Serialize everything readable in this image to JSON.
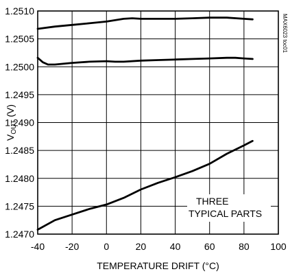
{
  "chart_data": {
    "type": "line",
    "title": "",
    "xlabel": "TEMPERATURE DRIFT (°C)",
    "ylabel_main": "V",
    "ylabel_sub": "OUT",
    "ylabel_unit": " (V)",
    "xlim": [
      -40,
      100
    ],
    "ylim": [
      1.247,
      1.251
    ],
    "x_ticks": [
      -40,
      -20,
      0,
      20,
      40,
      60,
      80,
      100
    ],
    "x_tick_labels": [
      "-40",
      "-20",
      "0",
      "20",
      "40",
      "60",
      "80",
      "100"
    ],
    "y_ticks": [
      1.247,
      1.2475,
      1.248,
      1.2485,
      1.249,
      1.2495,
      1.25,
      1.2505,
      1.251
    ],
    "y_tick_labels": [
      "1.2470",
      "1.2475",
      "1.2480",
      "1.2485",
      "1.2490",
      "1.2495",
      "1.2500",
      "1.2505",
      "1.2510"
    ],
    "grid": true,
    "annotation_lines": [
      "THREE",
      "TYPICAL PARTS"
    ],
    "side_label": "MAX6023 toc01",
    "series": [
      {
        "points": [
          [
            -40,
            1.25068
          ],
          [
            -30,
            1.25072
          ],
          [
            -20,
            1.25075
          ],
          [
            -10,
            1.25078
          ],
          [
            0,
            1.25081
          ],
          [
            10,
            1.25086
          ],
          [
            15,
            1.25087
          ],
          [
            20,
            1.25086
          ],
          [
            30,
            1.25086
          ],
          [
            40,
            1.25086
          ],
          [
            50,
            1.25087
          ],
          [
            60,
            1.25088
          ],
          [
            70,
            1.25088
          ],
          [
            80,
            1.25086
          ],
          [
            85,
            1.25085
          ]
        ]
      },
      {
        "points": [
          [
            -40,
            1.25016
          ],
          [
            -37,
            1.25008
          ],
          [
            -34,
            1.25004
          ],
          [
            -30,
            1.25004
          ],
          [
            -20,
            1.25007
          ],
          [
            -10,
            1.25009
          ],
          [
            0,
            1.2501
          ],
          [
            5,
            1.25009
          ],
          [
            10,
            1.25009
          ],
          [
            20,
            1.25011
          ],
          [
            30,
            1.25012
          ],
          [
            40,
            1.25013
          ],
          [
            50,
            1.25014
          ],
          [
            60,
            1.25015
          ],
          [
            70,
            1.25016
          ],
          [
            75,
            1.25016
          ],
          [
            80,
            1.25015
          ],
          [
            85,
            1.25014
          ]
        ]
      },
      {
        "points": [
          [
            -40,
            1.24708
          ],
          [
            -30,
            1.24725
          ],
          [
            -20,
            1.24735
          ],
          [
            -10,
            1.24745
          ],
          [
            0,
            1.24753
          ],
          [
            10,
            1.24765
          ],
          [
            20,
            1.2478
          ],
          [
            30,
            1.24792
          ],
          [
            40,
            1.24802
          ],
          [
            50,
            1.24813
          ],
          [
            60,
            1.24826
          ],
          [
            70,
            1.24844
          ],
          [
            80,
            1.24859
          ],
          [
            85,
            1.24867
          ]
        ]
      }
    ]
  }
}
